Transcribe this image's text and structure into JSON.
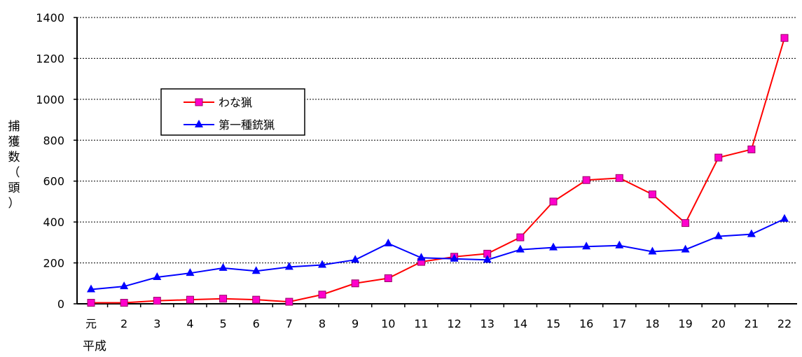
{
  "chart_data": {
    "type": "line",
    "title": "",
    "xlabel": "平成",
    "ylabel": "捕獲数（頭）",
    "ylim": [
      0,
      1400
    ],
    "yticks": [
      0,
      200,
      400,
      600,
      800,
      1000,
      1200,
      1400
    ],
    "ytick_labels": [
      "0",
      "200",
      "400",
      "600",
      "800",
      "1000",
      "1200",
      "1400"
    ],
    "grid": true,
    "legend_position": "top-left",
    "categories": [
      "元",
      "2",
      "3",
      "4",
      "5",
      "6",
      "7",
      "8",
      "9",
      "10",
      "11",
      "12",
      "13",
      "14",
      "15",
      "16",
      "17",
      "18",
      "19",
      "20",
      "21",
      "22"
    ],
    "series": [
      {
        "name": "わな猟",
        "color": "#ff0000",
        "marker": "square",
        "marker_color": "#ff00cc",
        "values": [
          5,
          5,
          15,
          20,
          25,
          20,
          10,
          45,
          100,
          125,
          205,
          230,
          245,
          325,
          500,
          605,
          615,
          535,
          395,
          715,
          755,
          1300
        ]
      },
      {
        "name": "第一種銃猟",
        "color": "#0000ff",
        "marker": "triangle",
        "marker_color": "#0000ff",
        "values": [
          70,
          85,
          130,
          150,
          175,
          160,
          180,
          190,
          215,
          295,
          225,
          220,
          215,
          265,
          275,
          280,
          285,
          255,
          265,
          330,
          340,
          415
        ]
      }
    ]
  }
}
